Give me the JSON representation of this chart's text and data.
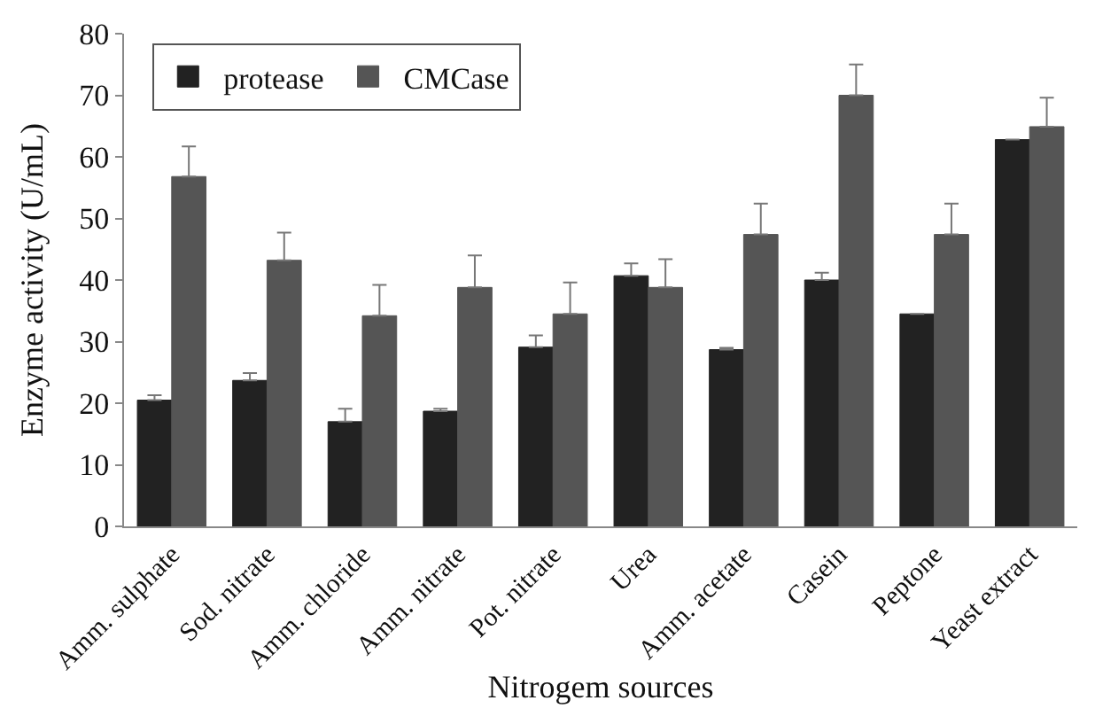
{
  "chart_data": {
    "type": "bar",
    "xlabel": "Nitrogem sources",
    "ylabel": "Enzyme activity (U/mL)",
    "categories": [
      "Amm. sulphate",
      "Sod. nitrate",
      "Amm. chloride",
      "Amm. nitrate",
      "Pot. nitrate",
      "Urea",
      "Amm. acetate",
      "Casein",
      "Peptone",
      "Yeast extract"
    ],
    "series": [
      {
        "name": "protease",
        "color": "#222222",
        "values": [
          20.5,
          23.7,
          17.0,
          18.7,
          29.1,
          40.7,
          28.7,
          40.0,
          34.5,
          62.8
        ],
        "errors": [
          [
            20.5,
            21.3
          ],
          [
            23.7,
            24.9
          ],
          [
            17.0,
            19.1
          ],
          [
            18.7,
            19.1
          ],
          [
            29.1,
            31.0
          ],
          [
            40.7,
            42.7
          ],
          [
            28.7,
            29.0
          ],
          [
            40.0,
            41.2
          ],
          null,
          null
        ]
      },
      {
        "name": "CMCase",
        "color": "#555555",
        "values": [
          56.8,
          43.2,
          34.2,
          38.8,
          34.5,
          38.8,
          47.4,
          70.0,
          47.4,
          64.9
        ],
        "errors": [
          [
            56.8,
            61.7
          ],
          [
            43.2,
            47.7
          ],
          [
            34.2,
            39.2
          ],
          [
            38.8,
            44.0
          ],
          [
            34.5,
            39.6
          ],
          [
            38.8,
            43.4
          ],
          [
            47.4,
            52.4
          ],
          [
            70.0,
            75.0
          ],
          [
            47.4,
            52.4
          ],
          [
            64.9,
            69.6
          ]
        ]
      }
    ],
    "ylim": [
      0,
      80
    ],
    "yticks": [
      0,
      10,
      20,
      30,
      40,
      50,
      60,
      70,
      80
    ],
    "legend": "top left"
  }
}
